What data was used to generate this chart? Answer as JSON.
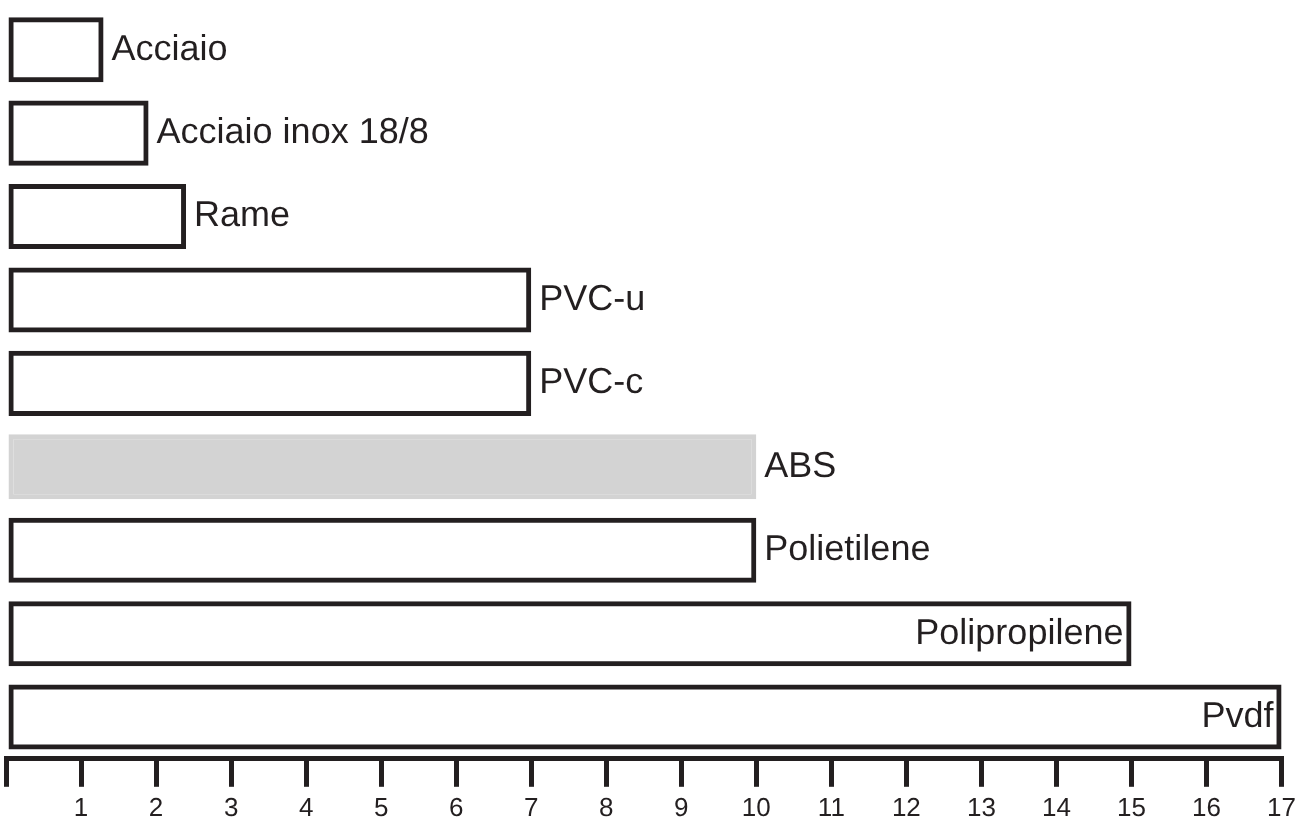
{
  "chart_data": {
    "type": "bar",
    "orientation": "horizontal",
    "categories": [
      "Acciaio",
      "Acciaio inox 18/8",
      "Rame",
      "PVC-u",
      "PVC-c",
      "ABS",
      "Polietilene",
      "Polipropilene",
      "Pvdf"
    ],
    "values": [
      1.3,
      1.9,
      2.4,
      7,
      7,
      10,
      10,
      15,
      17
    ],
    "colors": [
      "#231f20",
      "#231f20",
      "#231f20",
      "#231f20",
      "#231f20",
      "#d3d3d3",
      "#231f20",
      "#231f20",
      "#231f20"
    ],
    "xlim": [
      0,
      17
    ],
    "xticks": [
      {
        "value": 0,
        "label": null
      },
      1,
      2,
      3,
      4,
      5,
      6,
      7,
      8,
      9,
      10,
      11,
      12,
      13,
      14,
      15,
      16,
      17
    ],
    "tick_labels": "x",
    "grid": false,
    "legend": false
  }
}
